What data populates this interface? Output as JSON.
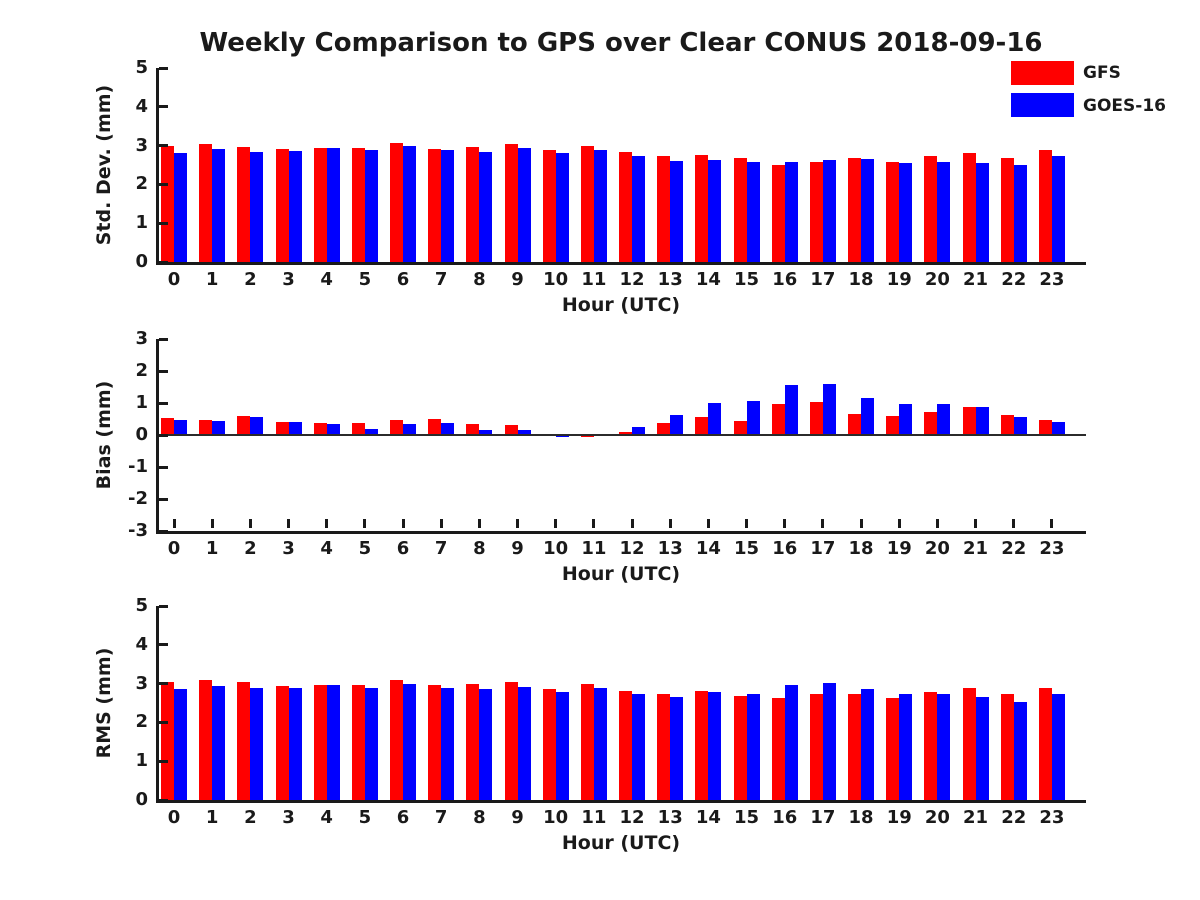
{
  "figure_title": "Weekly Comparison to GPS over Clear CONUS 2018-09-16",
  "legend": {
    "items": [
      {
        "label": "GFS",
        "color": "#ff0000"
      },
      {
        "label": "GOES-16",
        "color": "#0000ff"
      }
    ]
  },
  "chart_data": [
    {
      "type": "bar",
      "title": "Weekly Comparison to GPS over Clear CONUS 2018-09-16",
      "xlabel": "Hour (UTC)",
      "ylabel": "Std. Dev. (mm)",
      "ylim": [
        0,
        5
      ],
      "yticks": [
        0,
        1,
        2,
        3,
        4,
        5
      ],
      "grid": false,
      "legend_position": "upper-right-outside",
      "categories": [
        "0",
        "1",
        "2",
        "3",
        "4",
        "5",
        "6",
        "7",
        "8",
        "9",
        "10",
        "11",
        "12",
        "13",
        "14",
        "15",
        "16",
        "17",
        "18",
        "19",
        "20",
        "21",
        "22",
        "23"
      ],
      "series": [
        {
          "name": "GFS",
          "color": "#ff0000",
          "values": [
            3.0,
            3.03,
            2.97,
            2.9,
            2.95,
            2.94,
            3.06,
            2.92,
            2.97,
            3.05,
            2.88,
            3.0,
            2.83,
            2.73,
            2.77,
            2.68,
            2.5,
            2.57,
            2.68,
            2.59,
            2.73,
            2.81,
            2.68,
            2.88
          ]
        },
        {
          "name": "GOES-16",
          "color": "#0000ff",
          "values": [
            2.82,
            2.9,
            2.83,
            2.86,
            2.95,
            2.88,
            2.98,
            2.89,
            2.84,
            2.94,
            2.82,
            2.88,
            2.73,
            2.61,
            2.63,
            2.57,
            2.57,
            2.63,
            2.65,
            2.56,
            2.57,
            2.56,
            2.49,
            2.72
          ]
        }
      ]
    },
    {
      "type": "bar",
      "title": "",
      "xlabel": "Hour (UTC)",
      "ylabel": "Bias (mm)",
      "ylim": [
        -3,
        3
      ],
      "yticks": [
        3,
        2,
        1,
        0,
        -1,
        -2,
        -3
      ],
      "grid": false,
      "categories": [
        "0",
        "1",
        "2",
        "3",
        "4",
        "5",
        "6",
        "7",
        "8",
        "9",
        "10",
        "11",
        "12",
        "13",
        "14",
        "15",
        "16",
        "17",
        "18",
        "19",
        "20",
        "21",
        "22",
        "23"
      ],
      "series": [
        {
          "name": "GFS",
          "color": "#ff0000",
          "values": [
            0.52,
            0.47,
            0.6,
            0.42,
            0.38,
            0.38,
            0.48,
            0.5,
            0.33,
            0.31,
            -0.02,
            -0.07,
            0.1,
            0.36,
            0.55,
            0.44,
            0.97,
            1.03,
            0.65,
            0.6,
            0.73,
            0.86,
            0.64,
            0.47
          ]
        },
        {
          "name": "GOES-16",
          "color": "#0000ff",
          "values": [
            0.47,
            0.45,
            0.55,
            0.42,
            0.33,
            0.2,
            0.33,
            0.36,
            0.16,
            0.16,
            -0.05,
            -0.03,
            0.25,
            0.64,
            1.01,
            1.07,
            1.55,
            1.58,
            1.15,
            0.97,
            0.96,
            0.86,
            0.56,
            0.4
          ]
        }
      ]
    },
    {
      "type": "bar",
      "title": "",
      "xlabel": "Hour (UTC)",
      "ylabel": "RMS (mm)",
      "ylim": [
        0,
        5
      ],
      "yticks": [
        0,
        1,
        2,
        3,
        4,
        5
      ],
      "grid": false,
      "categories": [
        "0",
        "1",
        "2",
        "3",
        "4",
        "5",
        "6",
        "7",
        "8",
        "9",
        "10",
        "11",
        "12",
        "13",
        "14",
        "15",
        "16",
        "17",
        "18",
        "19",
        "20",
        "21",
        "22",
        "23"
      ],
      "series": [
        {
          "name": "GFS",
          "color": "#ff0000",
          "values": [
            3.05,
            3.08,
            3.05,
            2.95,
            2.97,
            2.97,
            3.08,
            2.96,
            2.99,
            3.05,
            2.87,
            2.99,
            2.82,
            2.73,
            2.81,
            2.68,
            2.64,
            2.73,
            2.72,
            2.63,
            2.79,
            2.89,
            2.72,
            2.89
          ]
        },
        {
          "name": "GOES-16",
          "color": "#0000ff",
          "values": [
            2.86,
            2.93,
            2.89,
            2.89,
            2.97,
            2.89,
            3.0,
            2.88,
            2.87,
            2.91,
            2.78,
            2.88,
            2.74,
            2.65,
            2.79,
            2.74,
            2.97,
            3.02,
            2.85,
            2.72,
            2.74,
            2.66,
            2.53,
            2.74
          ]
        }
      ]
    }
  ]
}
